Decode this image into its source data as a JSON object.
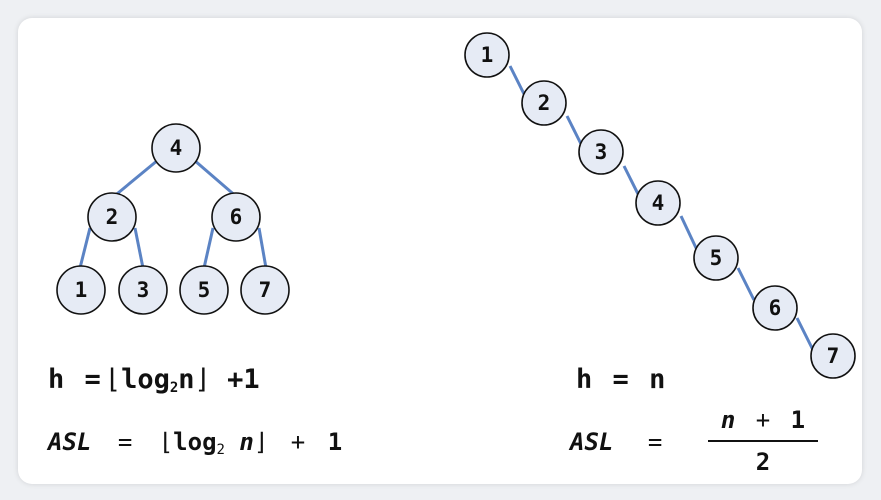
{
  "balanced_tree": {
    "nodes": [
      "4",
      "2",
      "6",
      "1",
      "3",
      "5",
      "7"
    ],
    "edges": [
      [
        "4",
        "2"
      ],
      [
        "4",
        "6"
      ],
      [
        "2",
        "1"
      ],
      [
        "2",
        "3"
      ],
      [
        "6",
        "5"
      ],
      [
        "6",
        "7"
      ]
    ]
  },
  "skewed_tree": {
    "nodes": [
      "1",
      "2",
      "3",
      "4",
      "5",
      "6",
      "7"
    ]
  },
  "formulas": {
    "left_h": {
      "lhs": "h",
      "eq": "=",
      "floor_open": "⌊",
      "log": "log",
      "base": "2",
      "arg": "n",
      "floor_close": "⌋",
      "plus_one": "+1"
    },
    "left_asl": {
      "lhs": "ASL",
      "eq": "=",
      "floor_open": "⌊",
      "log": "log",
      "base": "2",
      "arg": "n",
      "floor_close": "⌋",
      "plus": "+",
      "one": "1"
    },
    "right_h": {
      "lhs": "h",
      "eq": "=",
      "rhs": "n"
    },
    "right_asl": {
      "lhs": "ASL",
      "eq": "=",
      "numerator_var": "n",
      "numerator_op": "+",
      "numerator_const": "1",
      "denominator": "2"
    }
  }
}
